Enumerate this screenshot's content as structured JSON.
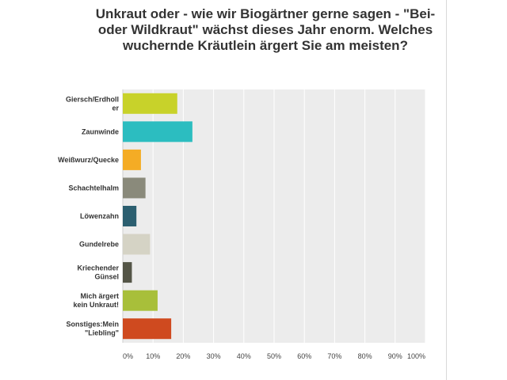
{
  "chart_data": {
    "type": "bar",
    "orientation": "horizontal",
    "title": "Unkraut oder - wie wir Biogärtner gerne sagen - \"Bei- oder Wildkraut\" wächst dieses Jahr enorm. Welches wuchernde Kräutlein ärgert Sie am meisten?",
    "categories": [
      [
        "Giersch/Erdholl",
        "er"
      ],
      [
        "Zaunwinde"
      ],
      [
        "Weißwurz/Quecke"
      ],
      [
        "Schachtelhalm"
      ],
      [
        "Löwenzahn"
      ],
      [
        "Gundelrebe"
      ],
      [
        "Kriechender",
        "Günsel"
      ],
      [
        "Mich ärgert",
        "kein Unkraut!"
      ],
      [
        "Sonstiges:Mein",
        "\"Liebling\""
      ]
    ],
    "values": [
      18,
      23,
      6,
      7.5,
      4.5,
      9,
      3,
      11.5,
      16
    ],
    "colors": [
      "#c8d22a",
      "#2cbdc0",
      "#f4ac25",
      "#8a8a7b",
      "#2c5f70",
      "#d5d3c5",
      "#545547",
      "#a8bf3a",
      "#cf4a1f"
    ],
    "xlim": [
      0,
      100
    ],
    "xticks": [
      "0%",
      "10%",
      "20%",
      "30%",
      "40%",
      "50%",
      "60%",
      "70%",
      "80%",
      "90%",
      "100%"
    ],
    "grid": true,
    "legend": "none"
  }
}
